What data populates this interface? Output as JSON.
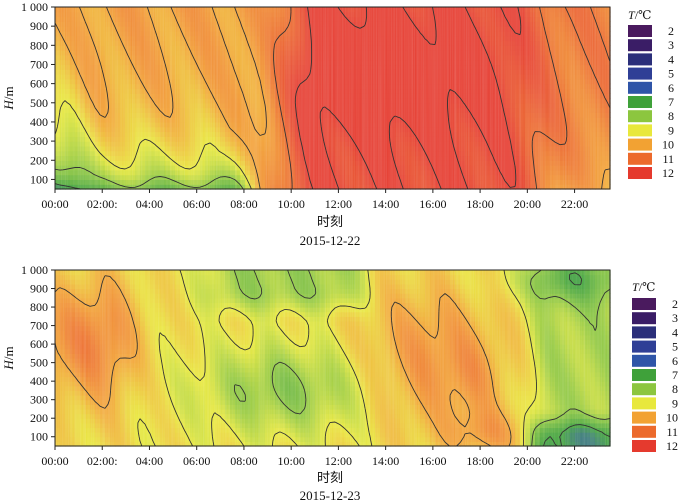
{
  "legend": {
    "title_italic": "T",
    "title_unit": "/℃",
    "levels": [
      2,
      3,
      4,
      5,
      6,
      7,
      8,
      9,
      10,
      11,
      12
    ],
    "colors": [
      "#4a1a5e",
      "#3a1d66",
      "#2b2f7a",
      "#2f3f96",
      "#2f55a8",
      "#3fa13a",
      "#8cc63f",
      "#e8e83c",
      "#f2a233",
      "#ec6a2c",
      "#e53a2e"
    ]
  },
  "chart_data": [
    {
      "type": "heatmap",
      "title": "2015-12-22",
      "xlabel": "时刻",
      "ylabel_italic": "H",
      "ylabel_unit": "/m",
      "x_ticks": [
        "00:00",
        "02:00:",
        "04:00",
        "06:00",
        "08:00",
        "10:00",
        "12:00",
        "14:00",
        "16:00",
        "18:00",
        "20:00",
        "22:00"
      ],
      "y_ticks": [
        "100",
        "200",
        "300",
        "400",
        "500",
        "600",
        "700",
        "800",
        "900",
        "1 000"
      ],
      "x_range_hours": [
        0,
        23.5
      ],
      "y_range_m": [
        50,
        1000
      ],
      "value_unit": "℃",
      "key_points": [
        {
          "time_h": 0.5,
          "height_m": 150,
          "T": 7
        },
        {
          "time_h": 3,
          "height_m": 150,
          "T": 7
        },
        {
          "time_h": 1,
          "height_m": 450,
          "T": 8
        },
        {
          "time_h": 1,
          "height_m": 850,
          "T": 10
        },
        {
          "time_h": 4.5,
          "height_m": 700,
          "T": 11
        },
        {
          "time_h": 12,
          "height_m": 650,
          "T": 12
        },
        {
          "time_h": 15.5,
          "height_m": 650,
          "T": 12
        },
        {
          "time_h": 18,
          "height_m": 700,
          "T": 12
        },
        {
          "time_h": 22.5,
          "height_m": 150,
          "T": 9
        }
      ]
    },
    {
      "type": "heatmap",
      "title": "2015-12-23",
      "xlabel": "时刻",
      "ylabel_italic": "H",
      "ylabel_unit": "/m",
      "x_ticks": [
        "00:00",
        "02:00:",
        "04:00",
        "06:00",
        "08:00",
        "10:00",
        "12:00",
        "14:00",
        "16:00",
        "18:00",
        "20:00",
        "22:00"
      ],
      "y_ticks": [
        "100",
        "200",
        "300",
        "400",
        "500",
        "600",
        "700",
        "800",
        "900",
        "1 000"
      ],
      "x_range_hours": [
        0,
        23.5
      ],
      "y_range_m": [
        50,
        1000
      ],
      "value_unit": "℃",
      "key_points": [
        {
          "time_h": 0.8,
          "height_m": 650,
          "T": 10
        },
        {
          "time_h": 2.5,
          "height_m": 600,
          "T": 10
        },
        {
          "time_h": 9.5,
          "height_m": 350,
          "T": 8
        },
        {
          "time_h": 7,
          "height_m": 850,
          "T": 8
        },
        {
          "time_h": 15.5,
          "height_m": 550,
          "T": 10
        },
        {
          "time_h": 18,
          "height_m": 100,
          "T": 11
        },
        {
          "time_h": 22,
          "height_m": 500,
          "T": 7
        },
        {
          "time_h": 22,
          "height_m": 950,
          "T": 6
        }
      ]
    }
  ]
}
